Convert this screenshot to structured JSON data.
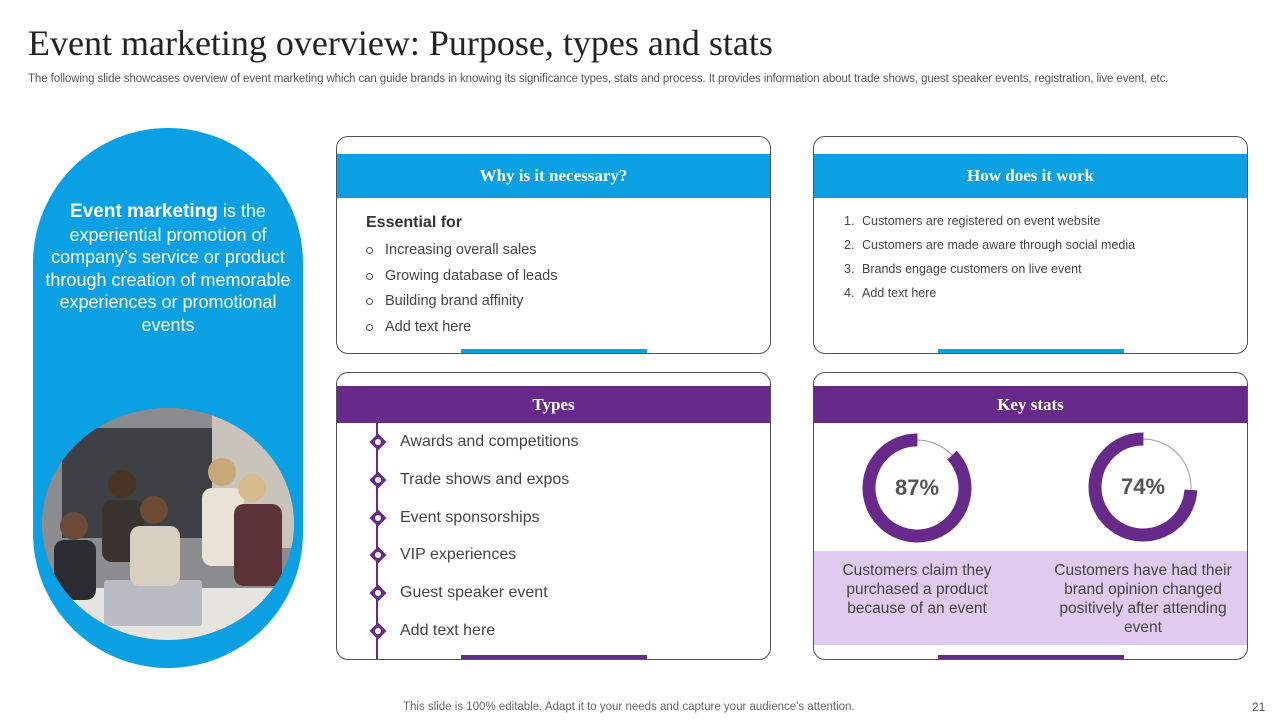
{
  "slide": {
    "title": "Event marketing overview: Purpose, types and stats",
    "subtitle": "The following slide showcases overview of event marketing which can guide brands in knowing its significance types, stats and process. It provides information about trade shows, guest speaker events, registration, live event,  etc.",
    "footer": "This slide is 100% editable. Adapt it to your needs and capture your audience's attention.",
    "page_number": "21"
  },
  "definition": {
    "bold": "Event marketing",
    "text": " is the experiential promotion of company’s service or product through creation of memorable experiences or promotional events"
  },
  "why": {
    "heading": "Why is it necessary?",
    "subheading": "Essential for",
    "items": [
      "Increasing overall sales",
      "Growing database of leads",
      "Building brand affinity",
      "Add text here"
    ]
  },
  "how": {
    "heading": "How does it work",
    "items": [
      {
        "num": "1.",
        "text": "Customers are registered on event website"
      },
      {
        "num": "2.",
        "text": "Customers are made aware through social media"
      },
      {
        "num": "3.",
        "text": "Brands engage customers on live event"
      },
      {
        "num": "4.",
        "text": "Add text here"
      }
    ]
  },
  "types": {
    "heading": "Types",
    "items": [
      "Awards and competitions",
      "Trade shows and expos",
      "Event sponsorships",
      "VIP experiences",
      "Guest speaker event",
      "Add text here"
    ]
  },
  "stats": {
    "heading": "Key stats",
    "items": [
      {
        "label": "87%",
        "value": 87,
        "text": "Customers claim they purchased a product because of an event"
      },
      {
        "label": "74%",
        "value": 74,
        "text": "Customers have had their brand opinion changed positively after attending event"
      }
    ]
  },
  "colors": {
    "blue": "#0aa0e3",
    "purple": "#672a8a",
    "lavender": "#e1caef"
  }
}
